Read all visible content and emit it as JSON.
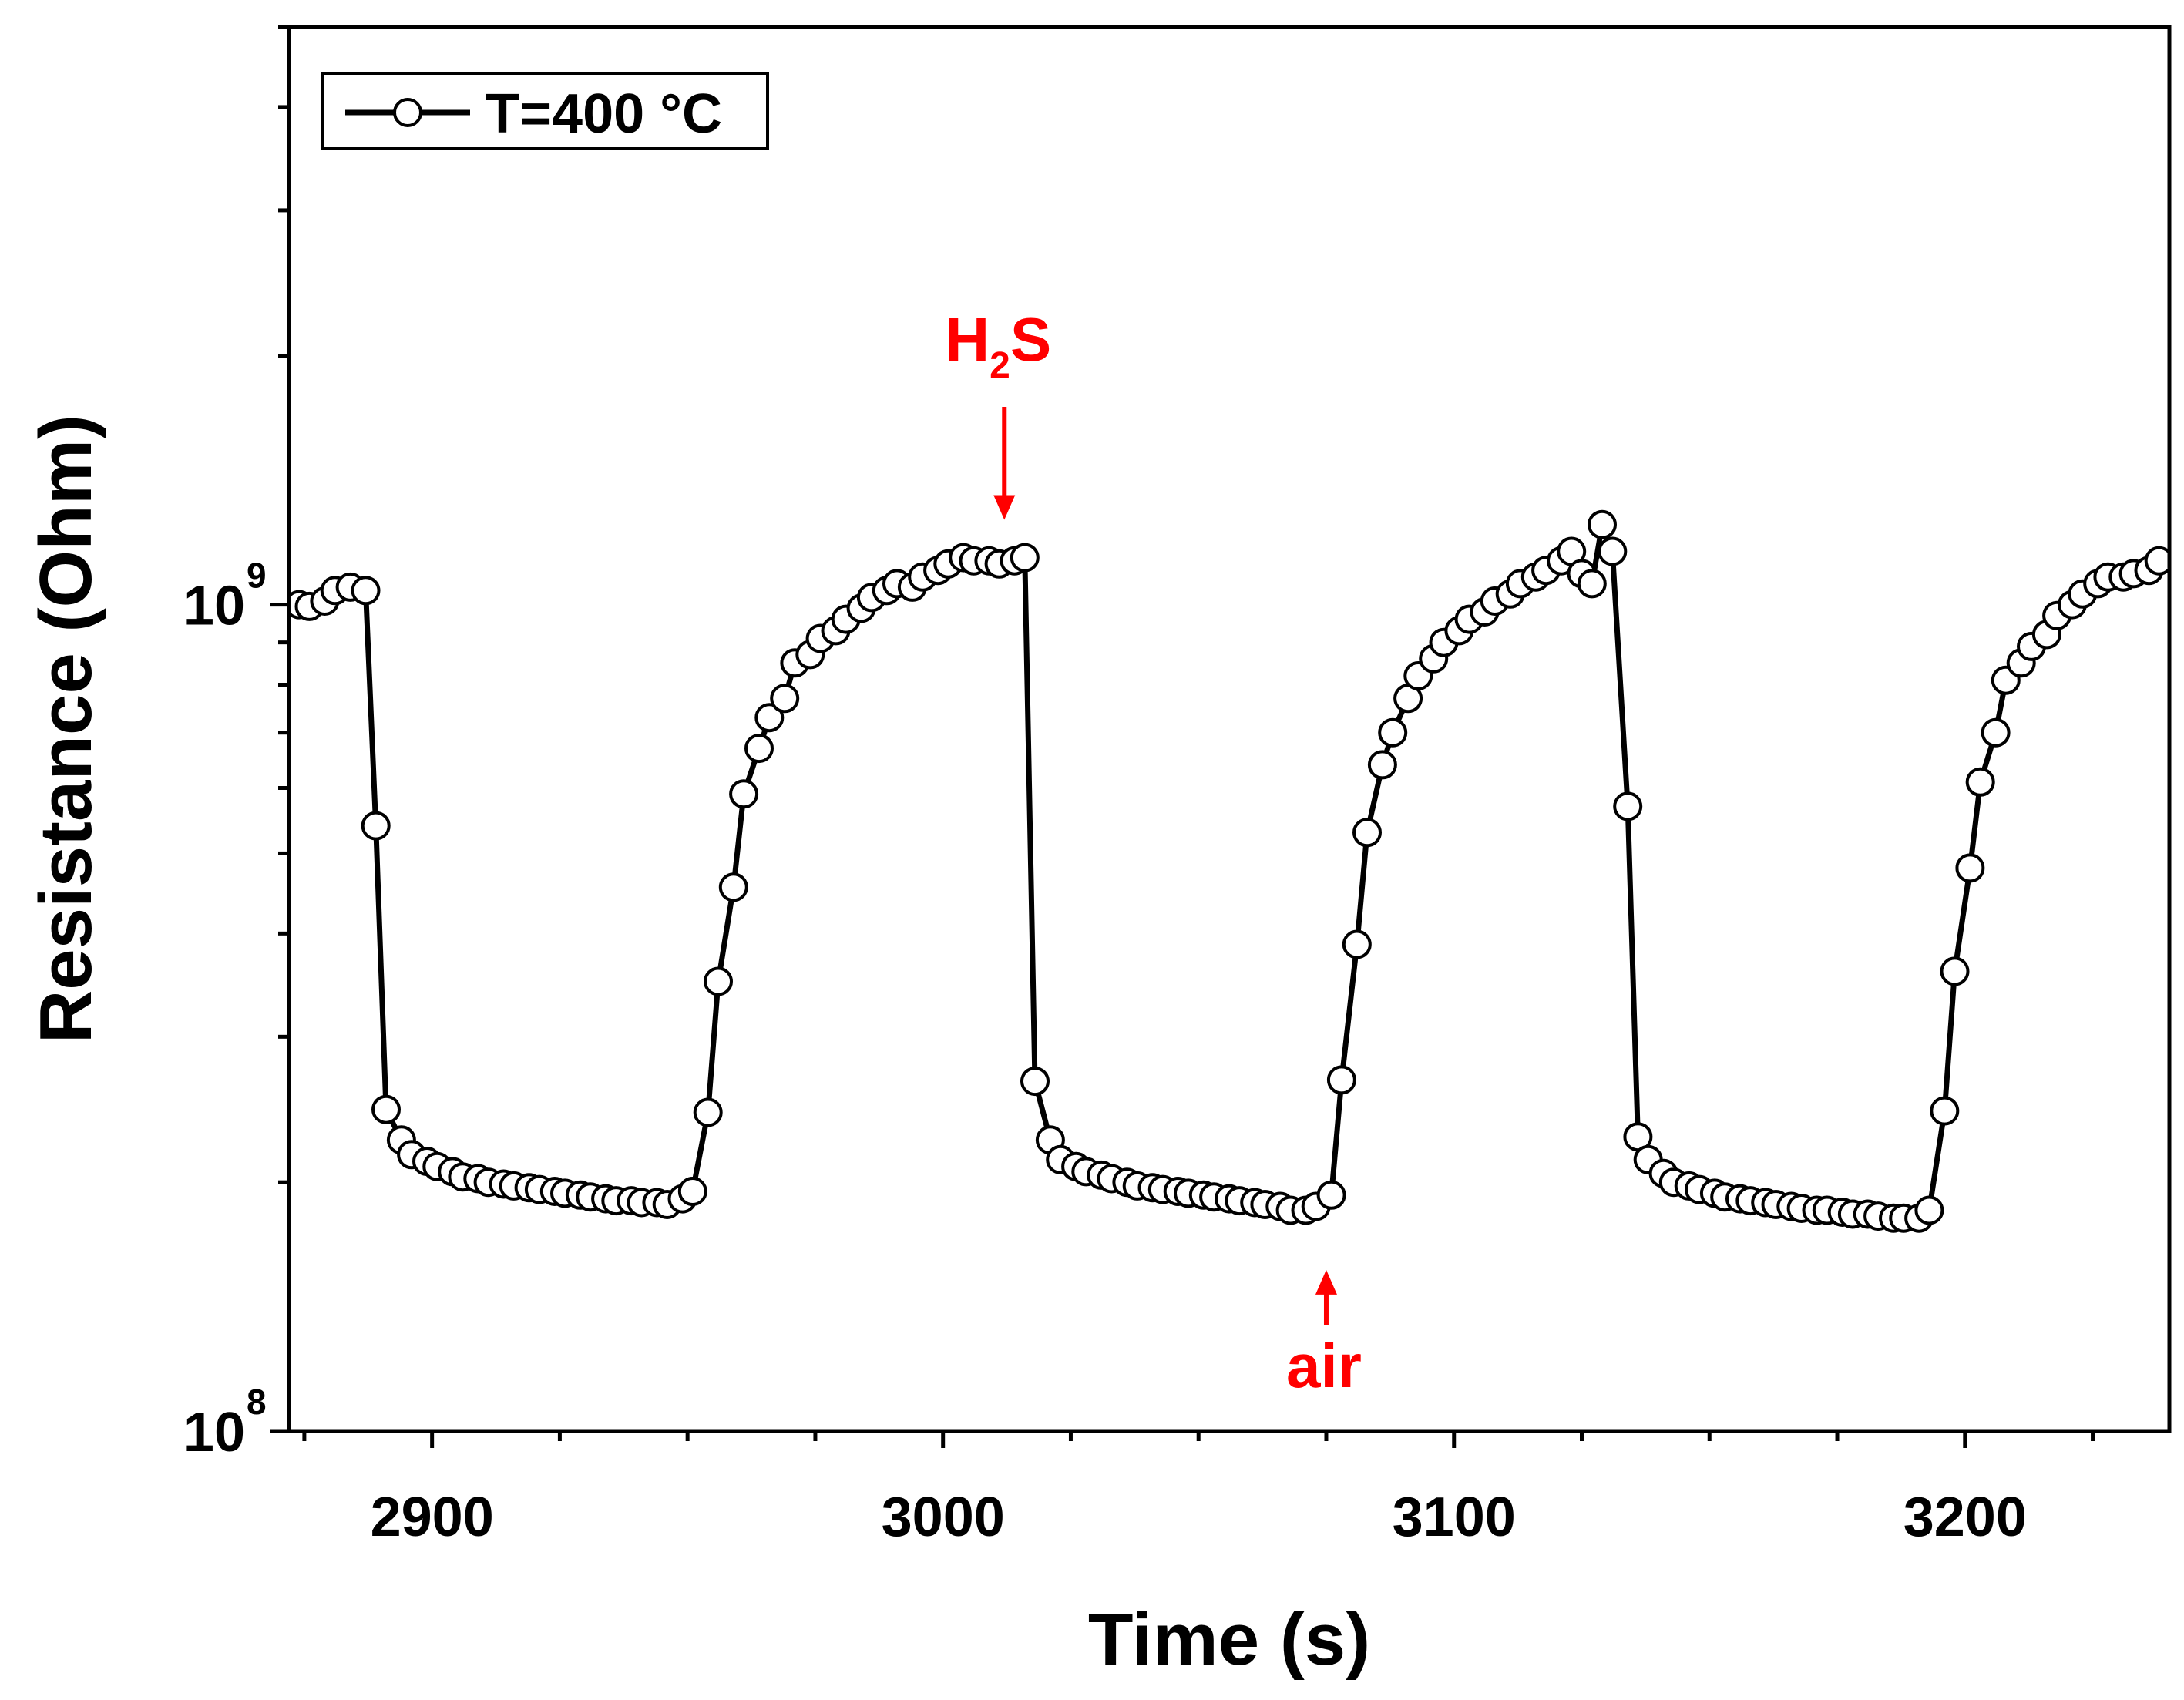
{
  "chart_data": {
    "type": "line",
    "title": "",
    "xlabel": "Time (s)",
    "ylabel": "Resistance (Ohm)",
    "xlim": [
      2872,
      3240
    ],
    "ylim": [
      100000000,
      5000000000
    ],
    "yscale": "log",
    "grid": false,
    "legend_position": "top-left",
    "x_ticks": [
      {
        "value": 2900,
        "label": "2900"
      },
      {
        "value": 3000,
        "label": "3000"
      },
      {
        "value": 3100,
        "label": "3100"
      },
      {
        "value": 3200,
        "label": "3200"
      }
    ],
    "y_ticks": [
      {
        "value": 100000000,
        "base": "10",
        "exp": "8"
      },
      {
        "value": 1000000000,
        "base": "10",
        "exp": "9"
      }
    ],
    "annotations": [
      {
        "name": "h2s",
        "text": "H",
        "sub": "2",
        "suffix": "S",
        "x": 3012,
        "arrow_to": 1150000000,
        "direction": "down",
        "color": "#ff0000"
      },
      {
        "name": "air",
        "text": "air",
        "x": 3075,
        "arrow_to": 170000000,
        "direction": "up",
        "color": "#ff0000"
      }
    ],
    "series": [
      {
        "name": "T=400 °C",
        "line_color": "#000000",
        "marker": "circle",
        "marker_fill": "#ffffff",
        "points": [
          [
            2874,
            1000000000
          ],
          [
            2876,
            995000000
          ],
          [
            2879,
            1010000000
          ],
          [
            2881,
            1040000000
          ],
          [
            2884,
            1050000000
          ],
          [
            2887,
            1040000000
          ],
          [
            2889,
            540000000
          ],
          [
            2891,
            245000000
          ],
          [
            2894,
            225000000
          ],
          [
            2896,
            216000000
          ],
          [
            2899,
            212000000
          ],
          [
            2901,
            209000000
          ],
          [
            2904,
            206000000
          ],
          [
            2906,
            203000000
          ],
          [
            2909,
            202000000
          ],
          [
            2911,
            200000000
          ],
          [
            2914,
            199000000
          ],
          [
            2916,
            198000000
          ],
          [
            2919,
            197000000
          ],
          [
            2921,
            196000000
          ],
          [
            2924,
            195000000
          ],
          [
            2926,
            194000000
          ],
          [
            2929,
            193000000
          ],
          [
            2931,
            192000000
          ],
          [
            2934,
            191000000
          ],
          [
            2936,
            190000000
          ],
          [
            2939,
            190000000
          ],
          [
            2941,
            189000000
          ],
          [
            2944,
            189000000
          ],
          [
            2946,
            188000000
          ],
          [
            2949,
            191000000
          ],
          [
            2951,
            195000000
          ],
          [
            2954,
            243000000
          ],
          [
            2956,
            350000000
          ],
          [
            2959,
            455000000
          ],
          [
            2961,
            590000000
          ],
          [
            2964,
            670000000
          ],
          [
            2966,
            730000000
          ],
          [
            2969,
            770000000
          ],
          [
            2971,
            850000000
          ],
          [
            2974,
            870000000
          ],
          [
            2976,
            910000000
          ],
          [
            2979,
            930000000
          ],
          [
            2981,
            960000000
          ],
          [
            2984,
            990000000
          ],
          [
            2986,
            1020000000
          ],
          [
            2989,
            1040000000
          ],
          [
            2991,
            1060000000
          ],
          [
            2994,
            1050000000
          ],
          [
            2996,
            1080000000
          ],
          [
            2999,
            1100000000
          ],
          [
            3001,
            1120000000
          ],
          [
            3004,
            1140000000
          ],
          [
            3006,
            1130000000
          ],
          [
            3009,
            1130000000
          ],
          [
            3011,
            1120000000
          ],
          [
            3014,
            1130000000
          ],
          [
            3016,
            1140000000
          ],
          [
            3018,
            265000000
          ],
          [
            3021,
            225000000
          ],
          [
            3023,
            213000000
          ],
          [
            3026,
            209000000
          ],
          [
            3028,
            206000000
          ],
          [
            3031,
            204000000
          ],
          [
            3033,
            202000000
          ],
          [
            3036,
            200000000
          ],
          [
            3038,
            198000000
          ],
          [
            3041,
            197000000
          ],
          [
            3043,
            196000000
          ],
          [
            3046,
            195000000
          ],
          [
            3048,
            194000000
          ],
          [
            3051,
            193000000
          ],
          [
            3053,
            192000000
          ],
          [
            3056,
            191000000
          ],
          [
            3058,
            190000000
          ],
          [
            3061,
            189000000
          ],
          [
            3063,
            188000000
          ],
          [
            3066,
            187000000
          ],
          [
            3068,
            185000000
          ],
          [
            3071,
            185000000
          ],
          [
            3073,
            187000000
          ],
          [
            3076,
            193000000
          ],
          [
            3078,
            266000000
          ],
          [
            3081,
            388000000
          ],
          [
            3083,
            530000000
          ],
          [
            3086,
            640000000
          ],
          [
            3088,
            700000000
          ],
          [
            3091,
            770000000
          ],
          [
            3093,
            820000000
          ],
          [
            3096,
            860000000
          ],
          [
            3098,
            900000000
          ],
          [
            3101,
            930000000
          ],
          [
            3103,
            960000000
          ],
          [
            3106,
            980000000
          ],
          [
            3108,
            1010000000
          ],
          [
            3111,
            1030000000
          ],
          [
            3113,
            1060000000
          ],
          [
            3116,
            1080000000
          ],
          [
            3118,
            1100000000
          ],
          [
            3121,
            1130000000
          ],
          [
            3123,
            1160000000
          ],
          [
            3125,
            1090000000
          ],
          [
            3127,
            1060000000
          ],
          [
            3129,
            1250000000
          ],
          [
            3131,
            1160000000
          ],
          [
            3134,
            570000000
          ],
          [
            3136,
            227000000
          ],
          [
            3138,
            213000000
          ],
          [
            3141,
            205000000
          ],
          [
            3143,
            200000000
          ],
          [
            3146,
            198000000
          ],
          [
            3148,
            196000000
          ],
          [
            3151,
            194000000
          ],
          [
            3153,
            192000000
          ],
          [
            3156,
            191000000
          ],
          [
            3158,
            190000000
          ],
          [
            3161,
            189000000
          ],
          [
            3163,
            188000000
          ],
          [
            3166,
            187000000
          ],
          [
            3168,
            186000000
          ],
          [
            3171,
            185000000
          ],
          [
            3173,
            185000000
          ],
          [
            3176,
            184000000
          ],
          [
            3178,
            183000000
          ],
          [
            3181,
            183000000
          ],
          [
            3183,
            182000000
          ],
          [
            3186,
            181000000
          ],
          [
            3188,
            181000000
          ],
          [
            3191,
            181000000
          ],
          [
            3193,
            185000000
          ],
          [
            3196,
            244000000
          ],
          [
            3198,
            360000000
          ],
          [
            3201,
            480000000
          ],
          [
            3203,
            610000000
          ],
          [
            3206,
            700000000
          ],
          [
            3208,
            810000000
          ],
          [
            3211,
            850000000
          ],
          [
            3213,
            890000000
          ],
          [
            3216,
            920000000
          ],
          [
            3218,
            970000000
          ],
          [
            3221,
            1000000000
          ],
          [
            3223,
            1030000000
          ],
          [
            3226,
            1060000000
          ],
          [
            3228,
            1080000000
          ],
          [
            3231,
            1080000000
          ],
          [
            3233,
            1090000000
          ],
          [
            3236,
            1100000000
          ],
          [
            3238,
            1130000000
          ]
        ]
      }
    ]
  }
}
